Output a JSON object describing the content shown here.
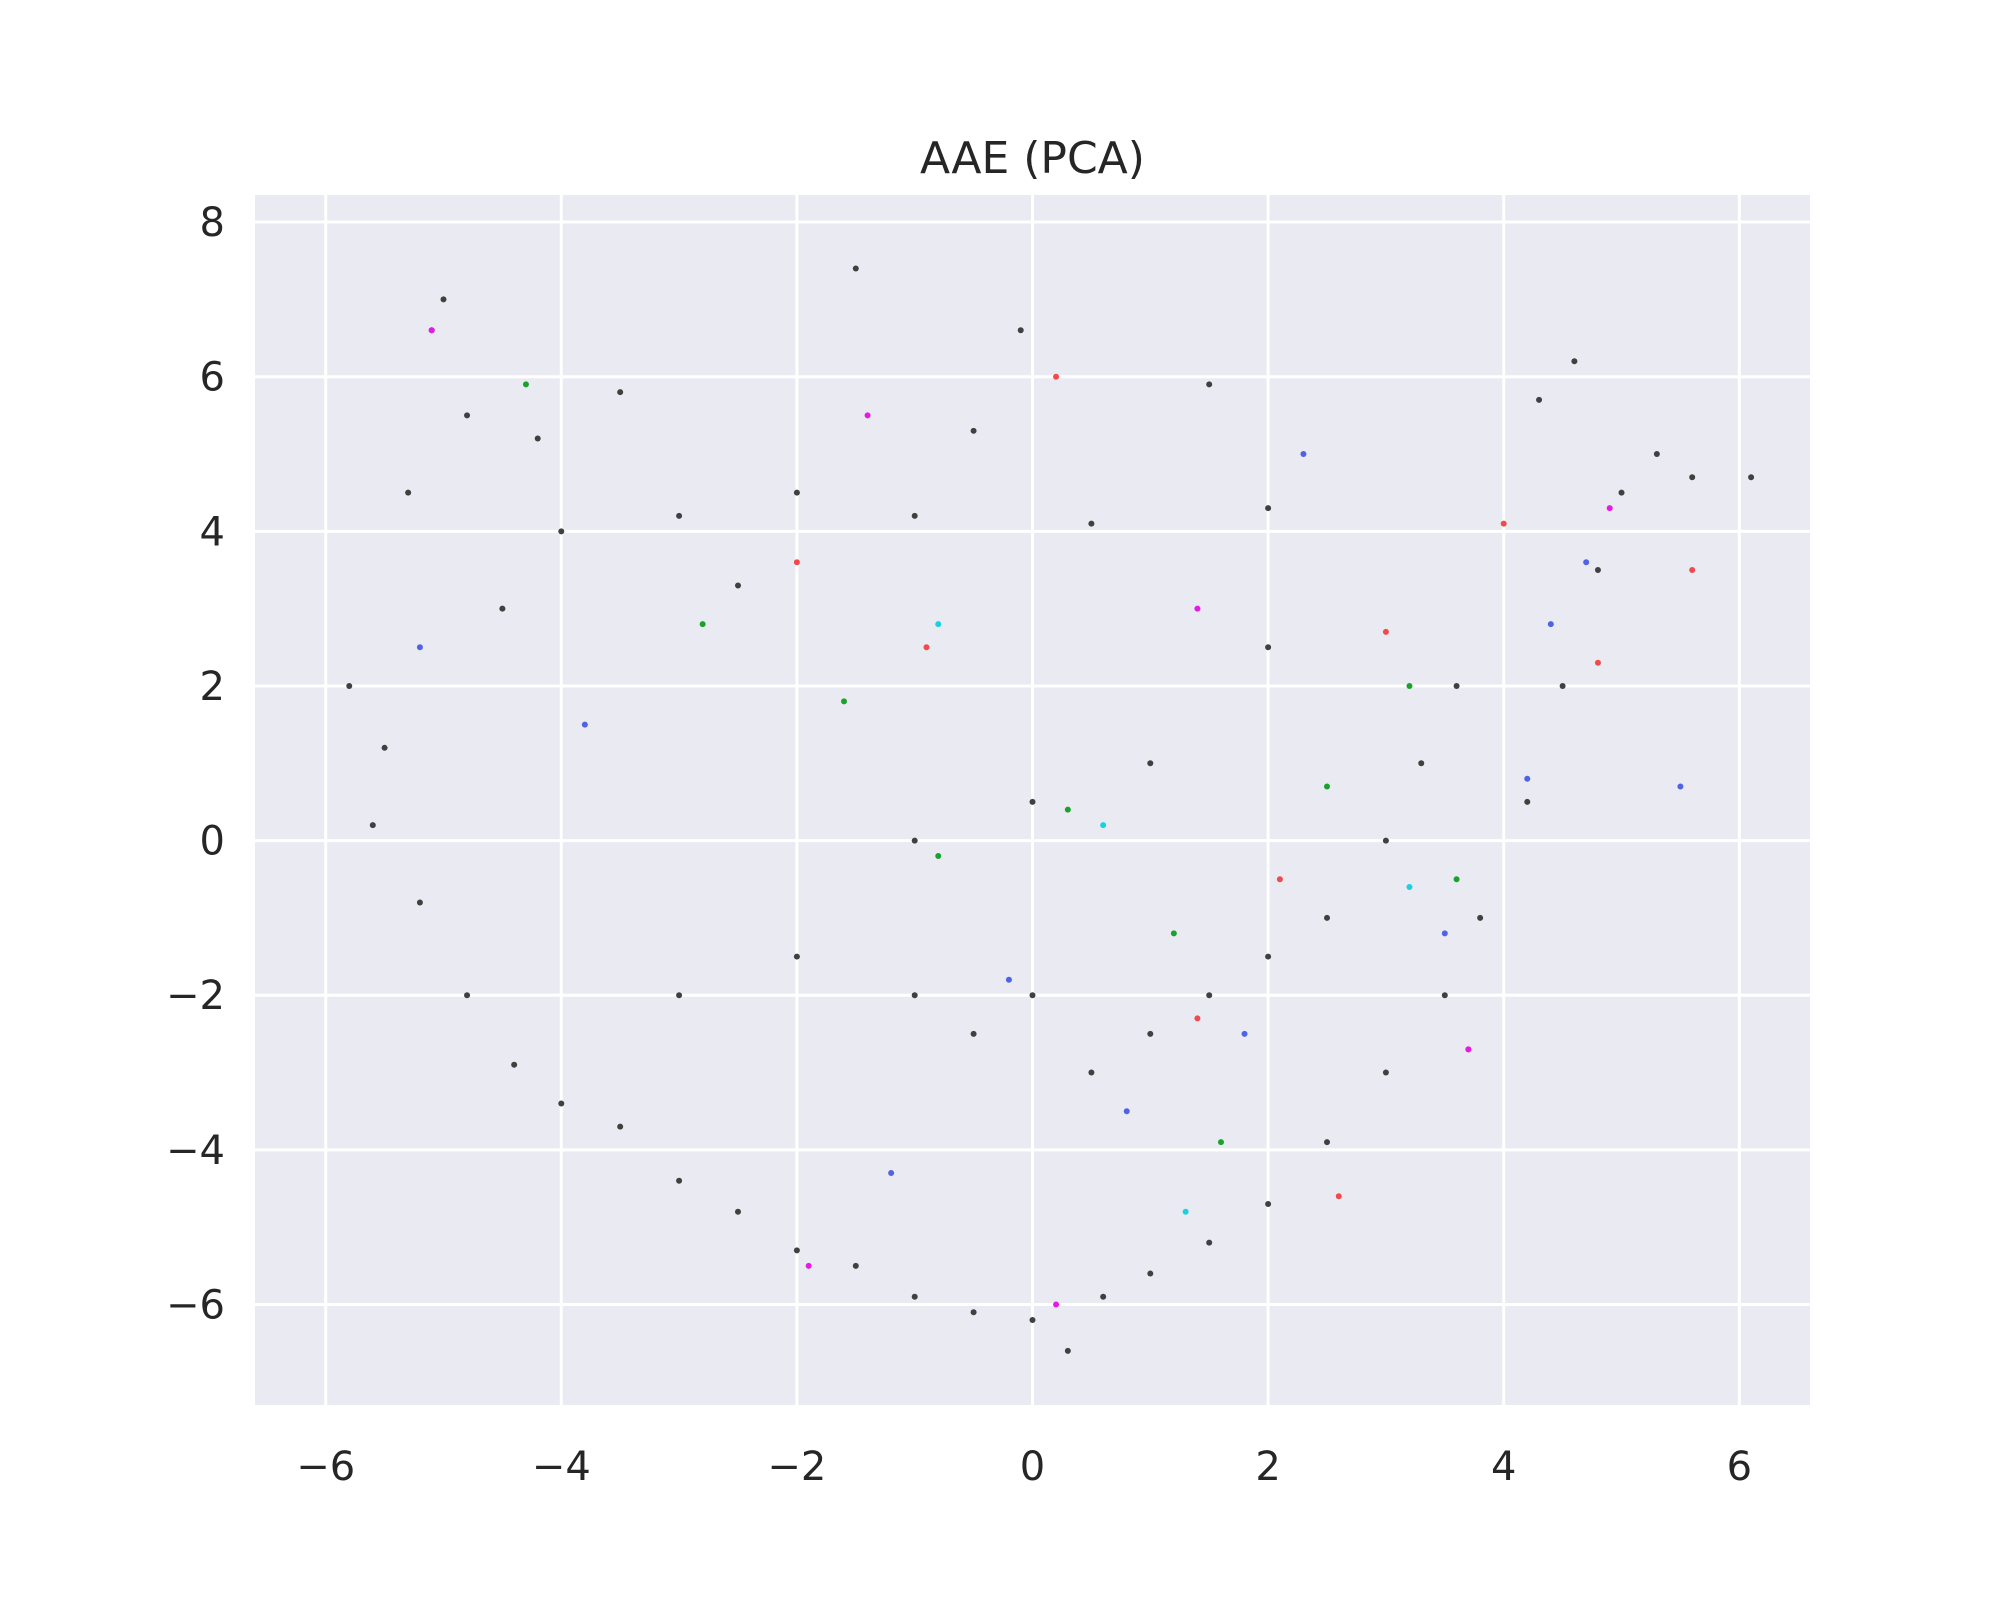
{
  "chart_data": {
    "type": "scatter",
    "title": "AAE (PCA)",
    "xlabel": "",
    "ylabel": "",
    "xlim": [
      -6.6,
      6.6
    ],
    "ylim": [
      -7.3,
      8.35
    ],
    "x_ticks": [
      -6,
      -4,
      -2,
      0,
      2,
      4,
      6
    ],
    "y_ticks": [
      -6,
      -4,
      -2,
      0,
      2,
      4,
      6,
      8
    ],
    "x_tick_labels": [
      "−6",
      "−4",
      "−2",
      "0",
      "2",
      "4",
      "6"
    ],
    "y_tick_labels": [
      "−6",
      "−4",
      "−2",
      "0",
      "2",
      "4",
      "6",
      "8"
    ],
    "grid": true,
    "legend": "none",
    "colors": {
      "background": "#eaeaf2",
      "grid": "#ffffff",
      "dominant": "#404040",
      "blue": "#4e63e6",
      "green": "#1aa32a",
      "red": "#f24a4a",
      "magenta": "#e619e6",
      "cyan": "#1ad1e0"
    },
    "series": [
      {
        "color_key": "dominant",
        "points": [
          [
            -5.8,
            2.0
          ],
          [
            -5.5,
            1.2
          ],
          [
            -5.3,
            4.5
          ],
          [
            -5.1,
            6.6
          ],
          [
            -5.0,
            7.0
          ],
          [
            -4.8,
            5.5
          ],
          [
            -4.5,
            3.0
          ],
          [
            -4.2,
            5.2
          ],
          [
            -4.0,
            4.0
          ],
          [
            -3.5,
            5.8
          ],
          [
            -3.0,
            4.2
          ],
          [
            -2.5,
            3.3
          ],
          [
            -2.0,
            4.5
          ],
          [
            -1.5,
            7.4
          ],
          [
            -1.0,
            4.2
          ],
          [
            -0.5,
            5.3
          ],
          [
            -0.1,
            6.6
          ],
          [
            0.5,
            4.1
          ],
          [
            1.5,
            5.9
          ],
          [
            2.0,
            4.3
          ],
          [
            -5.6,
            0.2
          ],
          [
            -5.2,
            -0.8
          ],
          [
            -4.8,
            -2.0
          ],
          [
            -4.4,
            -2.9
          ],
          [
            -4.0,
            -3.4
          ],
          [
            -3.5,
            -3.7
          ],
          [
            -3.0,
            -4.4
          ],
          [
            -2.5,
            -4.8
          ],
          [
            -2.0,
            -5.3
          ],
          [
            -1.5,
            -5.5
          ],
          [
            -1.0,
            -5.9
          ],
          [
            -0.5,
            -6.1
          ],
          [
            0.0,
            -6.2
          ],
          [
            0.3,
            -6.6
          ],
          [
            0.6,
            -5.9
          ],
          [
            1.0,
            -5.6
          ],
          [
            1.5,
            -5.2
          ],
          [
            2.0,
            -4.7
          ],
          [
            2.5,
            -3.9
          ],
          [
            3.0,
            -3.0
          ],
          [
            3.5,
            -2.0
          ],
          [
            3.8,
            -1.0
          ],
          [
            4.2,
            0.5
          ],
          [
            4.5,
            2.0
          ],
          [
            4.8,
            3.5
          ],
          [
            5.0,
            4.5
          ],
          [
            5.3,
            5.0
          ],
          [
            5.6,
            4.7
          ],
          [
            6.1,
            4.7
          ],
          [
            4.6,
            6.2
          ],
          [
            4.3,
            5.7
          ],
          [
            -1.0,
            -2.0
          ],
          [
            -0.5,
            -2.5
          ],
          [
            0.0,
            -2.0
          ],
          [
            0.5,
            -3.0
          ],
          [
            1.0,
            -2.5
          ],
          [
            1.5,
            -2.0
          ],
          [
            2.0,
            -1.5
          ],
          [
            2.5,
            -1.0
          ],
          [
            3.0,
            0.0
          ],
          [
            3.3,
            1.0
          ],
          [
            3.6,
            2.0
          ],
          [
            -3.0,
            -2.0
          ],
          [
            -2.0,
            -1.5
          ],
          [
            -1.0,
            0.0
          ],
          [
            0.0,
            0.5
          ],
          [
            1.0,
            1.0
          ],
          [
            2.0,
            2.5
          ]
        ]
      },
      {
        "color_key": "blue",
        "points": [
          [
            4.4,
            2.8
          ],
          [
            4.7,
            3.6
          ],
          [
            4.2,
            0.8
          ],
          [
            3.5,
            -1.2
          ],
          [
            2.3,
            5.0
          ],
          [
            1.8,
            -2.5
          ],
          [
            0.8,
            -3.5
          ],
          [
            -0.2,
            -1.8
          ],
          [
            -1.2,
            -4.3
          ],
          [
            -3.8,
            1.5
          ],
          [
            -5.2,
            2.5
          ],
          [
            5.5,
            0.7
          ]
        ]
      },
      {
        "color_key": "green",
        "points": [
          [
            -4.3,
            5.9
          ],
          [
            -2.8,
            2.8
          ],
          [
            -1.6,
            1.8
          ],
          [
            -0.8,
            -0.2
          ],
          [
            0.3,
            0.4
          ],
          [
            1.2,
            -1.2
          ],
          [
            2.5,
            0.7
          ],
          [
            3.2,
            2.0
          ],
          [
            3.6,
            -0.5
          ],
          [
            1.6,
            -3.9
          ]
        ]
      },
      {
        "color_key": "red",
        "points": [
          [
            4.0,
            4.1
          ],
          [
            4.8,
            2.3
          ],
          [
            5.6,
            3.5
          ],
          [
            3.0,
            2.7
          ],
          [
            2.1,
            -0.5
          ],
          [
            1.4,
            -2.3
          ],
          [
            0.2,
            6.0
          ],
          [
            -2.0,
            3.6
          ],
          [
            -0.9,
            2.5
          ],
          [
            2.6,
            -4.6
          ],
          [
            3.7,
            -2.7
          ]
        ]
      },
      {
        "color_key": "magenta",
        "points": [
          [
            -1.4,
            5.5
          ],
          [
            -5.1,
            6.6
          ],
          [
            0.2,
            -6.0
          ],
          [
            -1.9,
            -5.5
          ],
          [
            1.4,
            3.0
          ],
          [
            4.9,
            4.3
          ],
          [
            3.7,
            -2.7
          ]
        ]
      },
      {
        "color_key": "cyan",
        "points": [
          [
            -0.8,
            2.8
          ],
          [
            1.3,
            -4.8
          ],
          [
            0.6,
            0.2
          ],
          [
            3.2,
            -0.6
          ]
        ]
      }
    ]
  }
}
